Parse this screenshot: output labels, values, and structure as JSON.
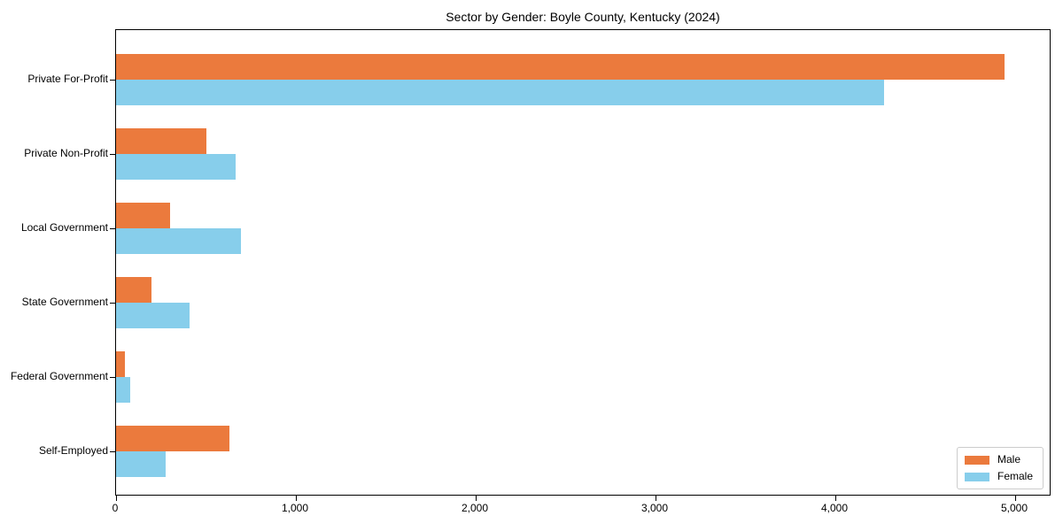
{
  "chart_data": {
    "type": "bar",
    "orientation": "horizontal",
    "title": "Sector by Gender: Boyle County, Kentucky (2024)",
    "categories": [
      "Private For-Profit",
      "Private Non-Profit",
      "Local Government",
      "State Government",
      "Federal Government",
      "Self-Employed"
    ],
    "series": [
      {
        "name": "Male",
        "color": "#EB7A3D",
        "values": [
          4940,
          500,
          300,
          195,
          50,
          630
        ]
      },
      {
        "name": "Female",
        "color": "#87CEEB",
        "values": [
          4270,
          665,
          695,
          410,
          80,
          275
        ]
      }
    ],
    "xlabel": "",
    "ylabel": "",
    "xlim": [
      0,
      5190
    ],
    "x_ticks": [
      0,
      1000,
      2000,
      3000,
      4000,
      5000
    ],
    "x_tick_labels": [
      "0",
      "1,000",
      "2,000",
      "3,000",
      "4,000",
      "5,000"
    ],
    "grid": false,
    "legend": {
      "position": "lower-right",
      "entries": [
        "Male",
        "Female"
      ]
    },
    "colors": {
      "axis": "#000000",
      "background": "#ffffff",
      "legend_border": "#cccccc"
    }
  }
}
